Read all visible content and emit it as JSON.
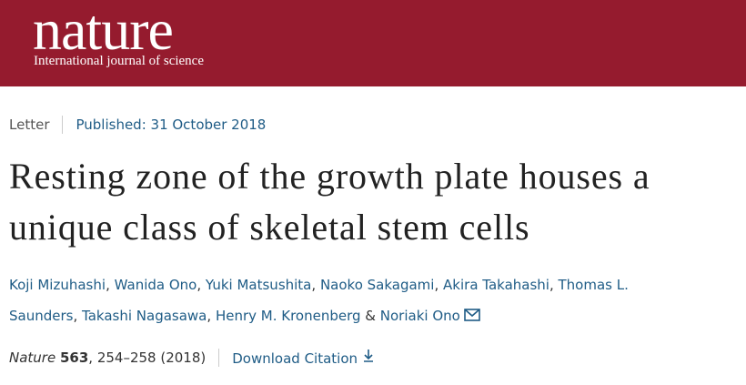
{
  "header": {
    "brand": "nature",
    "tagline": "International journal of science"
  },
  "article": {
    "type": "Letter",
    "published": "Published: 31 October 2018",
    "title": "Resting zone of the growth plate houses a unique class of skeletal stem cells",
    "authors": [
      "Koji Mizuhashi",
      "Wanida Ono",
      "Yuki Matsushita",
      "Naoko Sakagami",
      "Akira Takahashi",
      "Thomas L. Saunders",
      "Takashi Nagasawa",
      "Henry M. Kronenberg",
      "Noriaki Ono"
    ],
    "separator": ",",
    "last_separator": "&",
    "citation": {
      "journal": "Nature",
      "volume": "563",
      "rest": ", 254–258 (2018)"
    },
    "download": "Download Citation"
  }
}
